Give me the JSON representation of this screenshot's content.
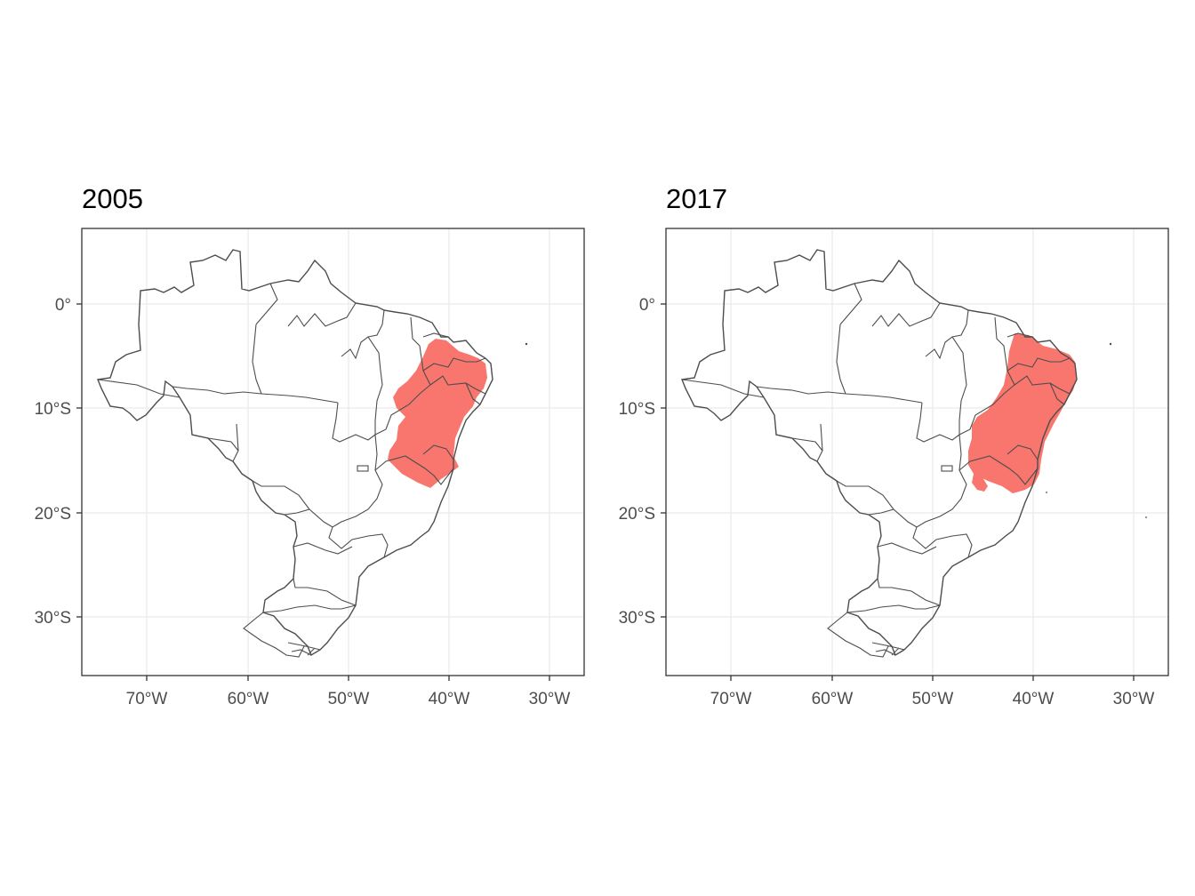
{
  "colors": {
    "region_fill": "#f8766d",
    "border": "#4d4d4d",
    "grid": "#ebebeb",
    "frame": "#333333",
    "tick_text": "#4d4d4d"
  },
  "panels": [
    {
      "title": "2005"
    },
    {
      "title": "2017"
    }
  ],
  "axes": {
    "x_ticks": [
      "70°W",
      "60°W",
      "50°W",
      "40°W",
      "30°W"
    ],
    "y_ticks": [
      "0°",
      "10°S",
      "20°S",
      "30°S"
    ],
    "lon_range": [
      -76,
      -26.5
    ],
    "lat_range": [
      -35.5,
      7.2
    ]
  }
}
